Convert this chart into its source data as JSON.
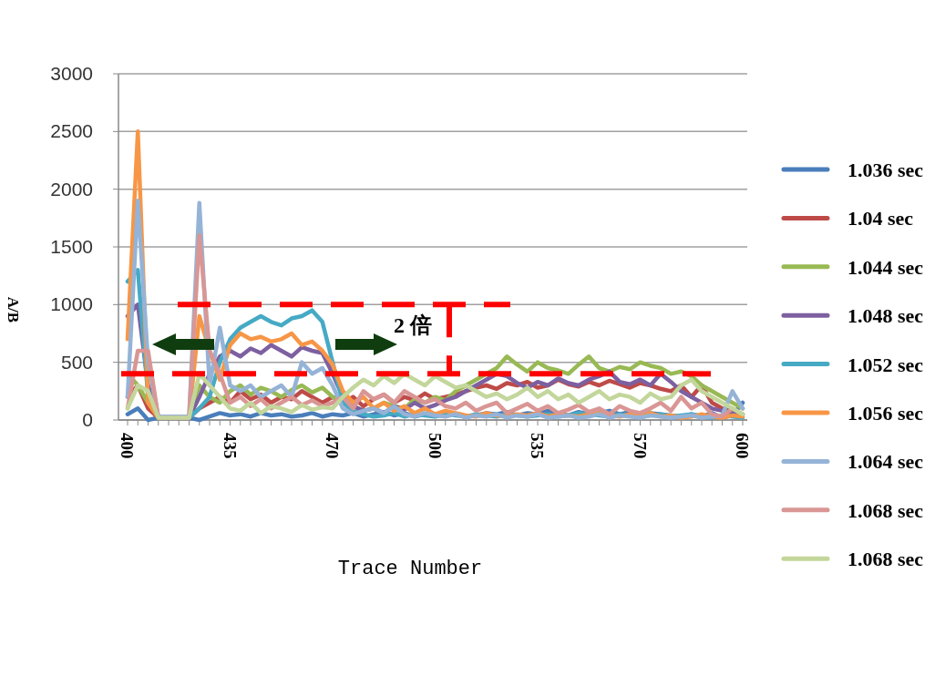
{
  "chart_data": {
    "type": "line",
    "xlabel": "Trace Number",
    "ylabel": "A/B",
    "annotations": [
      {
        "text": "2 倍",
        "y": 1000
      }
    ],
    "ref_lines": [
      {
        "axis": "y",
        "value": 1000,
        "color": "#ff0000",
        "line_style": "dashed"
      },
      {
        "axis": "y",
        "value": 400,
        "color": "#ff0000",
        "line_style": "dashed"
      }
    ],
    "categories": [
      "400",
      null,
      null,
      null,
      null,
      null,
      null,
      null,
      null,
      null,
      "435",
      null,
      null,
      null,
      null,
      null,
      null,
      null,
      null,
      null,
      "470",
      null,
      null,
      null,
      null,
      null,
      null,
      null,
      null,
      null,
      "500",
      null,
      null,
      null,
      null,
      null,
      null,
      null,
      null,
      null,
      "535",
      null,
      null,
      null,
      null,
      null,
      null,
      null,
      null,
      null,
      "570",
      null,
      null,
      null,
      null,
      null,
      null,
      null,
      null,
      null,
      "600"
    ],
    "ylim": [
      0,
      3000
    ],
    "yticks": [
      0,
      500,
      1000,
      1500,
      2000,
      2500,
      3000
    ],
    "grid": "y",
    "legend": "right",
    "marker": "none",
    "line_style": "solid",
    "series": [
      {
        "name": "1.036 sec",
        "color": "#4a7ebb",
        "values": [
          50,
          100,
          0,
          20,
          20,
          20,
          20,
          0,
          30,
          60,
          40,
          50,
          30,
          60,
          40,
          50,
          30,
          40,
          60,
          30,
          50,
          40,
          60,
          30,
          50,
          70,
          40,
          60,
          30,
          50,
          40,
          60,
          50,
          30,
          40,
          60,
          50,
          70,
          40,
          60,
          50,
          80,
          60,
          40,
          70,
          50,
          60,
          80,
          50,
          70,
          40,
          60,
          50,
          40,
          30,
          50,
          30,
          60,
          20,
          40,
          150
        ]
      },
      {
        "name": "1.04 sec",
        "color": "#be4b48",
        "values": [
          200,
          300,
          100,
          20,
          20,
          20,
          20,
          100,
          150,
          200,
          150,
          250,
          180,
          220,
          150,
          200,
          180,
          250,
          200,
          150,
          200,
          150,
          200,
          120,
          180,
          220,
          150,
          200,
          170,
          230,
          180,
          200,
          220,
          250,
          280,
          300,
          270,
          320,
          300,
          330,
          280,
          300,
          350,
          310,
          290,
          330,
          300,
          340,
          310,
          280,
          320,
          300,
          270,
          250,
          300,
          200,
          300,
          150,
          100,
          80,
          50
        ]
      },
      {
        "name": "1.044 sec",
        "color": "#98b954",
        "values": [
          400,
          300,
          150,
          20,
          20,
          20,
          20,
          300,
          200,
          150,
          250,
          300,
          220,
          280,
          250,
          200,
          260,
          300,
          240,
          280,
          200,
          150,
          120,
          80,
          100,
          150,
          120,
          100,
          180,
          150,
          200,
          170,
          250,
          300,
          350,
          400,
          450,
          550,
          480,
          420,
          500,
          450,
          430,
          400,
          480,
          550,
          450,
          420,
          460,
          440,
          500,
          470,
          450,
          400,
          420,
          380,
          300,
          250,
          200,
          150,
          100
        ]
      },
      {
        "name": "1.048 sec",
        "color": "#7d60a0",
        "values": [
          900,
          1000,
          300,
          20,
          20,
          20,
          20,
          200,
          400,
          550,
          600,
          550,
          620,
          580,
          650,
          600,
          550,
          630,
          600,
          580,
          400,
          200,
          120,
          80,
          100,
          60,
          120,
          90,
          150,
          100,
          130,
          170,
          200,
          250,
          300,
          350,
          400,
          380,
          320,
          280,
          330,
          300,
          360,
          320,
          300,
          350,
          380,
          420,
          330,
          310,
          350,
          300,
          400,
          330,
          250,
          200,
          150,
          100,
          80,
          60,
          50
        ]
      },
      {
        "name": "1.052 sec",
        "color": "#46aac5",
        "values": [
          1200,
          1300,
          200,
          20,
          20,
          20,
          20,
          100,
          200,
          500,
          700,
          800,
          850,
          900,
          850,
          820,
          880,
          900,
          950,
          850,
          500,
          150,
          80,
          50,
          30,
          40,
          60,
          30,
          50,
          40,
          30,
          50,
          40,
          30,
          50,
          40,
          30,
          50,
          40,
          30,
          40,
          50,
          30,
          40,
          60,
          50,
          40,
          30,
          50,
          40,
          30,
          40,
          50,
          30,
          40,
          50,
          30,
          20,
          40,
          30,
          20
        ]
      },
      {
        "name": "1.056 sec",
        "color": "#f79646",
        "values": [
          700,
          2500,
          150,
          20,
          20,
          20,
          20,
          900,
          600,
          350,
          650,
          750,
          700,
          720,
          680,
          700,
          750,
          650,
          680,
          600,
          480,
          250,
          150,
          200,
          100,
          150,
          80,
          120,
          60,
          100,
          50,
          80,
          60,
          40,
          30,
          60,
          40,
          30,
          50,
          40,
          60,
          30,
          50,
          40,
          30,
          50,
          60,
          40,
          30,
          50,
          40,
          60,
          30,
          40,
          20,
          30,
          50,
          30,
          20,
          40,
          30
        ]
      },
      {
        "name": "1.064 sec",
        "color": "#95b3d7",
        "values": [
          200,
          1900,
          500,
          30,
          30,
          30,
          30,
          1880,
          300,
          800,
          300,
          250,
          300,
          200,
          250,
          300,
          200,
          500,
          400,
          450,
          300,
          100,
          50,
          80,
          100,
          60,
          120,
          50,
          30,
          60,
          40,
          30,
          50,
          20,
          40,
          30,
          50,
          20,
          40,
          30,
          50,
          20,
          30,
          40,
          20,
          30,
          50,
          20,
          40,
          30,
          20,
          40,
          30,
          20,
          30,
          40,
          20,
          30,
          40,
          250,
          100
        ]
      },
      {
        "name": "1.068 sec",
        "color": "#d99694",
        "values": [
          100,
          600,
          600,
          20,
          20,
          20,
          20,
          1600,
          600,
          400,
          150,
          200,
          120,
          180,
          100,
          150,
          200,
          130,
          170,
          120,
          150,
          200,
          100,
          250,
          180,
          220,
          150,
          250,
          200,
          150,
          180,
          120,
          100,
          150,
          80,
          120,
          150,
          60,
          100,
          140,
          80,
          120,
          60,
          90,
          130,
          70,
          100,
          50,
          120,
          80,
          60,
          100,
          150,
          80,
          200,
          100,
          150,
          50,
          30,
          100,
          50
        ]
      },
      {
        "name": "1.068 sec",
        "color": "#c3d69b",
        "values": [
          100,
          300,
          250,
          20,
          20,
          20,
          20,
          400,
          300,
          200,
          100,
          80,
          150,
          60,
          120,
          100,
          70,
          130,
          90,
          110,
          100,
          200,
          280,
          350,
          300,
          380,
          320,
          400,
          350,
          300,
          380,
          330,
          280,
          300,
          250,
          200,
          230,
          180,
          220,
          280,
          200,
          250,
          180,
          220,
          150,
          200,
          250,
          180,
          220,
          200,
          150,
          230,
          180,
          200,
          300,
          350,
          250,
          200,
          150,
          100,
          50
        ]
      }
    ]
  }
}
